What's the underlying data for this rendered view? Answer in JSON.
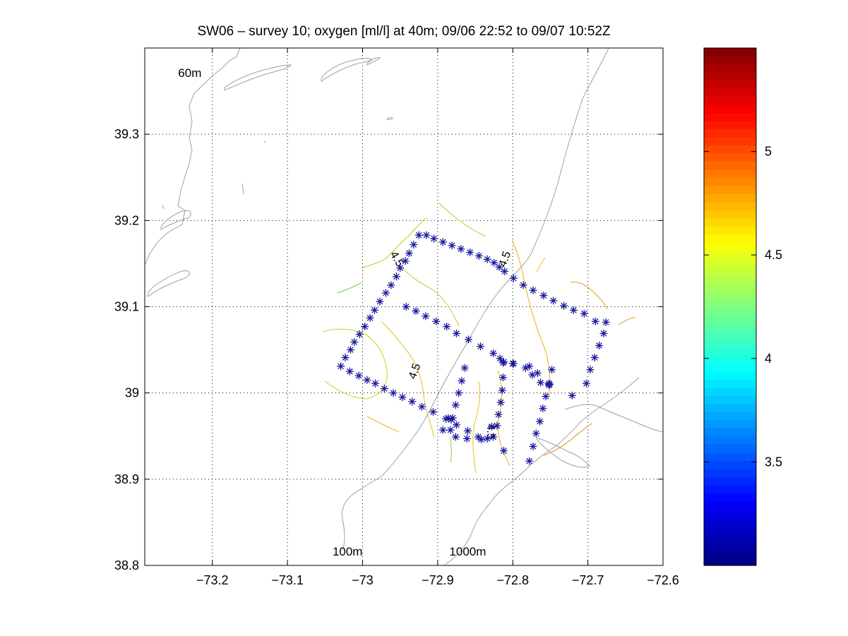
{
  "chart_data": {
    "type": "contour",
    "title": "SW06 – survey 10; oxygen [ml/l] at 40m; 09/06 22:52 to 09/07 10:52Z",
    "xlabel": "",
    "ylabel": "",
    "xlim": [
      -73.29,
      -72.6
    ],
    "ylim": [
      38.8,
      39.4
    ],
    "x_ticks": [
      -73.2,
      -73.1,
      -73.0,
      -72.9,
      -72.8,
      -72.7,
      -72.6
    ],
    "x_tick_labels": [
      "−73.2",
      "−73.1",
      "−73",
      "−72.9",
      "−72.8",
      "−72.7",
      "−72.6"
    ],
    "y_ticks": [
      38.8,
      38.9,
      39.0,
      39.1,
      39.2,
      39.3
    ],
    "y_tick_labels": [
      "38.8",
      "38.9",
      "39",
      "39.1",
      "39.2",
      "39.3"
    ],
    "grid": true,
    "colorbar": {
      "colormap": "jet",
      "range": [
        3.0,
        5.5
      ],
      "ticks": [
        3.5,
        4.0,
        4.5,
        5.0
      ],
      "tick_labels": [
        "3.5",
        "4",
        "4.5",
        "5"
      ]
    },
    "bathymetry_labels": [
      {
        "text": "60m",
        "x": -73.23,
        "y": 39.37
      },
      {
        "text": "100m",
        "x": -73.02,
        "y": 38.815
      },
      {
        "text": "1000m",
        "x": -72.86,
        "y": 38.815
      }
    ],
    "contour_labels": [
      {
        "text": "4.5",
        "x": -72.955,
        "y": 39.155,
        "angle": 60
      },
      {
        "text": "4.5",
        "x": -72.81,
        "y": 39.155,
        "angle": -70
      },
      {
        "text": "4.5",
        "x": -72.93,
        "y": 39.025,
        "angle": -70
      },
      {
        "text": "4.5",
        "x": -72.83,
        "y": 38.955,
        "angle": 90
      }
    ],
    "stations": [
      [
        -72.925,
        39.183
      ],
      [
        -72.915,
        39.183
      ],
      [
        -72.905,
        39.179
      ],
      [
        -72.893,
        39.175
      ],
      [
        -72.881,
        39.171
      ],
      [
        -72.869,
        39.167
      ],
      [
        -72.857,
        39.163
      ],
      [
        -72.845,
        39.159
      ],
      [
        -72.834,
        39.155
      ],
      [
        -72.825,
        39.151
      ],
      [
        -72.818,
        39.146
      ],
      [
        -72.811,
        39.141
      ],
      [
        -72.799,
        39.133
      ],
      [
        -72.786,
        39.125
      ],
      [
        -72.773,
        39.119
      ],
      [
        -72.759,
        39.113
      ],
      [
        -72.746,
        39.107
      ],
      [
        -72.732,
        39.101
      ],
      [
        -72.719,
        39.096
      ],
      [
        -72.705,
        39.092
      ],
      [
        -72.69,
        39.083
      ],
      [
        -72.676,
        39.082
      ],
      [
        -72.679,
        39.069
      ],
      [
        -72.685,
        39.055
      ],
      [
        -72.691,
        39.041
      ],
      [
        -72.697,
        39.027
      ],
      [
        -72.702,
        39.011
      ],
      [
        -72.721,
        38.997
      ],
      [
        -72.932,
        39.172
      ],
      [
        -72.938,
        39.162
      ],
      [
        -72.943,
        39.153
      ],
      [
        -72.95,
        39.145
      ],
      [
        -72.955,
        39.135
      ],
      [
        -72.962,
        39.125
      ],
      [
        -72.969,
        39.116
      ],
      [
        -72.977,
        39.106
      ],
      [
        -72.984,
        39.096
      ],
      [
        -72.99,
        39.087
      ],
      [
        -72.997,
        39.077
      ],
      [
        -73.004,
        39.068
      ],
      [
        -73.011,
        39.059
      ],
      [
        -73.016,
        39.05
      ],
      [
        -73.023,
        39.041
      ],
      [
        -73.029,
        39.031
      ],
      [
        -73.017,
        39.025
      ],
      [
        -73.005,
        39.02
      ],
      [
        -72.994,
        39.015
      ],
      [
        -72.983,
        39.011
      ],
      [
        -72.971,
        39.005
      ],
      [
        -72.959,
        39.0
      ],
      [
        -72.947,
        38.995
      ],
      [
        -72.934,
        38.99
      ],
      [
        -72.921,
        38.984
      ],
      [
        -72.906,
        38.978
      ],
      [
        -72.889,
        38.97
      ],
      [
        -72.882,
        38.969
      ],
      [
        -72.875,
        38.963
      ],
      [
        -72.86,
        38.956
      ],
      [
        -72.846,
        38.949
      ],
      [
        -72.834,
        38.947
      ],
      [
        -72.826,
        38.949
      ],
      [
        -72.821,
        38.962
      ],
      [
        -72.819,
        38.975
      ],
      [
        -72.816,
        38.989
      ],
      [
        -72.814,
        39.003
      ],
      [
        -72.813,
        39.018
      ],
      [
        -72.813,
        39.035
      ],
      [
        -72.8,
        39.034
      ],
      [
        -72.783,
        39.029
      ],
      [
        -72.774,
        39.021
      ],
      [
        -72.763,
        39.012
      ],
      [
        -72.752,
        39.009
      ],
      [
        -72.942,
        39.1
      ],
      [
        -72.929,
        39.095
      ],
      [
        -72.916,
        39.089
      ],
      [
        -72.902,
        39.083
      ],
      [
        -72.888,
        39.077
      ],
      [
        -72.875,
        39.069
      ],
      [
        -72.859,
        39.062
      ],
      [
        -72.843,
        39.054
      ],
      [
        -72.826,
        39.046
      ],
      [
        -72.817,
        39.04
      ],
      [
        -72.812,
        39.036
      ],
      [
        -72.799,
        39.034
      ],
      [
        -72.778,
        39.031
      ],
      [
        -72.767,
        39.023
      ],
      [
        -72.752,
        39.011
      ],
      [
        -72.748,
        39.027
      ],
      [
        -72.751,
        39.01
      ],
      [
        -72.756,
        38.996
      ],
      [
        -72.76,
        38.982
      ],
      [
        -72.764,
        38.967
      ],
      [
        -72.769,
        38.953
      ],
      [
        -72.773,
        38.938
      ],
      [
        -72.778,
        38.921
      ],
      [
        -72.864,
        39.029
      ],
      [
        -72.868,
        39.014
      ],
      [
        -72.872,
        39.0
      ],
      [
        -72.876,
        38.986
      ],
      [
        -72.88,
        38.971
      ],
      [
        -72.883,
        38.957
      ],
      [
        -72.886,
        38.971
      ],
      [
        -72.893,
        38.957
      ],
      [
        -72.876,
        38.949
      ],
      [
        -72.861,
        38.947
      ],
      [
        -72.842,
        38.946
      ],
      [
        -72.828,
        38.961
      ],
      [
        -72.812,
        38.933
      ]
    ]
  }
}
